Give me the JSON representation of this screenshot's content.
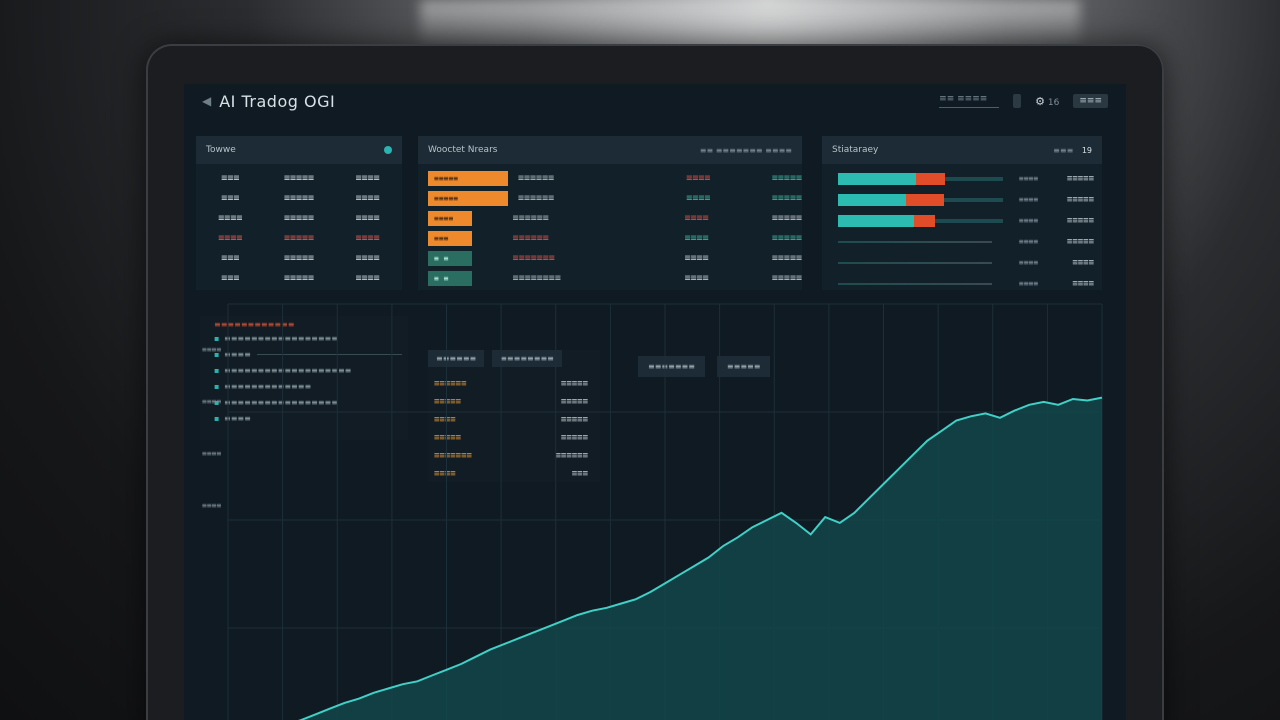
{
  "header": {
    "title": "AI Tradog OGI",
    "search_text": "≡≡ ≡≡≡≡",
    "gear_count": "16",
    "account_btn": "≡≡≡"
  },
  "watchlist": {
    "title": "Towwe",
    "rows": [
      {
        "a": "≡≡≡",
        "b": "≡≡≡≡≡",
        "c": "≡≡≡≡",
        "neg": false
      },
      {
        "a": "≡≡≡",
        "b": "≡≡≡≡≡",
        "c": "≡≡≡≡",
        "neg": false
      },
      {
        "a": "≡≡≡≡",
        "b": "≡≡≡≡≡",
        "c": "≡≡≡≡",
        "neg": false
      },
      {
        "a": "≡≡≡≡",
        "b": "≡≡≡≡≡",
        "c": "≡≡≡≡",
        "neg": true
      },
      {
        "a": "≡≡≡",
        "b": "≡≡≡≡≡",
        "c": "≡≡≡≡",
        "neg": false
      },
      {
        "a": "≡≡≡",
        "b": "≡≡≡≡≡",
        "c": "≡≡≡≡",
        "neg": false
      }
    ]
  },
  "orders": {
    "title": "Wooctet Nrears",
    "meta": "≡≡ ≡≡≡≡≡≡≡ ≡≡≡≡",
    "rows": [
      {
        "bar": "≡≡≡≡≡",
        "fill": 1.0,
        "style": "orange",
        "name": "≡≡≡≡≡≡",
        "name_color": "grey",
        "a": "≡≡≡≡",
        "a_color": "red",
        "b": "≡≡≡≡≡",
        "b_color": "green"
      },
      {
        "bar": "≡≡≡≡≡",
        "fill": 1.0,
        "style": "orange",
        "name": "≡≡≡≡≡≡",
        "name_color": "grey",
        "a": "≡≡≡≡",
        "a_color": "green",
        "b": "≡≡≡≡≡",
        "b_color": "green"
      },
      {
        "bar": "≡≡≡≡",
        "fill": 0.55,
        "style": "orange",
        "name": "≡≡≡≡≡≡",
        "name_color": "grey",
        "a": "≡≡≡≡",
        "a_color": "red",
        "b": "≡≡≡≡≡",
        "b_color": "grey"
      },
      {
        "bar": "≡≡≡",
        "fill": 0.55,
        "style": "orange",
        "name": "≡≡≡≡≡≡",
        "name_color": "red",
        "a": "≡≡≡≡",
        "a_color": "green",
        "b": "≡≡≡≡≡",
        "b_color": "green"
      },
      {
        "bar": "≡ ≡",
        "fill": 0.55,
        "style": "teal",
        "name": "≡≡≡≡≡≡≡",
        "name_color": "red",
        "a": "≡≡≡≡",
        "a_color": "grey",
        "b": "≡≡≡≡≡",
        "b_color": "grey"
      },
      {
        "bar": "≡ ≡",
        "fill": 0.55,
        "style": "teal",
        "name": "≡≡≡≡≡≡≡≡",
        "name_color": "grey",
        "a": "≡≡≡≡",
        "a_color": "grey",
        "b": "≡≡≡≡≡",
        "b_color": "grey"
      }
    ]
  },
  "allocation": {
    "title": "Stiataraey",
    "meta": "≡≡≡",
    "meta_num": "19",
    "rows": [
      {
        "teal": 0.47,
        "orange": 0.18,
        "dark": 0.35,
        "mid": "≡≡≡≡",
        "val": "≡≡≡≡≡"
      },
      {
        "teal": 0.41,
        "orange": 0.23,
        "dark": 0.36,
        "mid": "≡≡≡≡",
        "val": "≡≡≡≡≡"
      },
      {
        "teal": 0.46,
        "orange": 0.13,
        "dark": 0.41,
        "mid": "≡≡≡≡",
        "val": "≡≡≡≡≡"
      },
      {
        "teal": 0.0,
        "orange": 0.0,
        "dark": 1.0,
        "mid": "≡≡≡≡",
        "val": "≡≡≡≡≡"
      },
      {
        "teal": 0.0,
        "orange": 0.0,
        "dark": 1.0,
        "mid": "≡≡≡≡",
        "val": "≡≡≡≡"
      },
      {
        "teal": 0.0,
        "orange": 0.0,
        "dark": 1.0,
        "mid": "≡≡≡≡",
        "val": "≡≡≡≡"
      }
    ]
  },
  "feed": {
    "header": "≡≡≡≡≡≡≡≡≡≡≡≡",
    "items": [
      "≡≡≡≡≡≡≡≡≡≡≡≡≡≡≡≡≡",
      "≡≡≡≡",
      "≡≡≡≡≡≡≡≡≡≡≡≡≡≡≡≡≡≡≡",
      "≡≡≡≡≡≡≡≡≡≡≡≡≡",
      "≡≡≡≡≡≡≡≡≡≡≡≡≡≡≡≡≡",
      "≡≡≡≡"
    ]
  },
  "stats": {
    "tab1": "≡≡≡≡≡≡",
    "tab2": "≡≡≡≡≡≡≡≡",
    "rows": [
      {
        "k": "≡≡≡≡≡≡",
        "v": "≡≡≡≡≡"
      },
      {
        "k": "≡≡≡≡≡",
        "v": "≡≡≡≡≡"
      },
      {
        "k": "≡≡≡≡",
        "v": "≡≡≡≡≡"
      },
      {
        "k": "≡≡≡≡≡",
        "v": "≡≡≡≡≡"
      },
      {
        "k": "≡≡≡≡≡≡≡",
        "v": "≡≡≡≡≡≡"
      },
      {
        "k": "≡≡≡≡",
        "v": "≡≡≡"
      }
    ]
  },
  "chart_tabs": [
    "≡≡≡≡≡≡≡",
    "≡≡≡≡≡"
  ],
  "chart_data": {
    "type": "area",
    "title": "",
    "xlabel": "",
    "ylabel": "",
    "x": [
      0,
      1,
      2,
      3,
      4,
      5,
      6,
      7,
      8,
      9,
      10,
      11,
      12,
      13,
      14,
      15,
      16,
      17,
      18,
      19,
      20,
      21,
      22,
      23,
      24,
      25,
      26,
      27,
      28,
      29,
      30,
      31,
      32,
      33,
      34,
      35,
      36,
      37,
      38,
      39,
      40,
      41,
      42,
      43,
      44,
      45,
      46,
      47,
      48,
      49,
      50,
      51,
      52,
      53,
      54,
      55,
      56,
      57,
      58,
      59,
      60
    ],
    "y": [
      2,
      4,
      6,
      7,
      8,
      11,
      15,
      19,
      23,
      26,
      30,
      33,
      36,
      38,
      42,
      46,
      50,
      55,
      60,
      64,
      68,
      72,
      76,
      80,
      84,
      87,
      89,
      92,
      95,
      100,
      106,
      112,
      118,
      124,
      132,
      138,
      145,
      150,
      155,
      148,
      140,
      152,
      148,
      155,
      165,
      175,
      185,
      195,
      205,
      212,
      219,
      222,
      224,
      221,
      226,
      230,
      232,
      230,
      234,
      233,
      235
    ],
    "ylim": [
      0,
      300
    ],
    "ytick_labels": [
      "≡≡≡≡",
      "≡≡≡≡",
      "≡≡≡≡",
      "≡≡≡≡"
    ],
    "xtick_labels": [
      "≡≡",
      "≡≡≡",
      "≡≡≡",
      "≡≡≡",
      "≡≡≡",
      "≡≡≡",
      "≡≡≡",
      "≡≡≡",
      "≡≡≡",
      "≡≡≡",
      "≡≡≡",
      "≡≡≡",
      "≡≡≡",
      "≡≡≡",
      "≡≡≡",
      "≡≡≡",
      "≡≡≡"
    ],
    "grid": true,
    "colors": {
      "line": "#3fd1c7",
      "fill": "#12464a"
    }
  }
}
